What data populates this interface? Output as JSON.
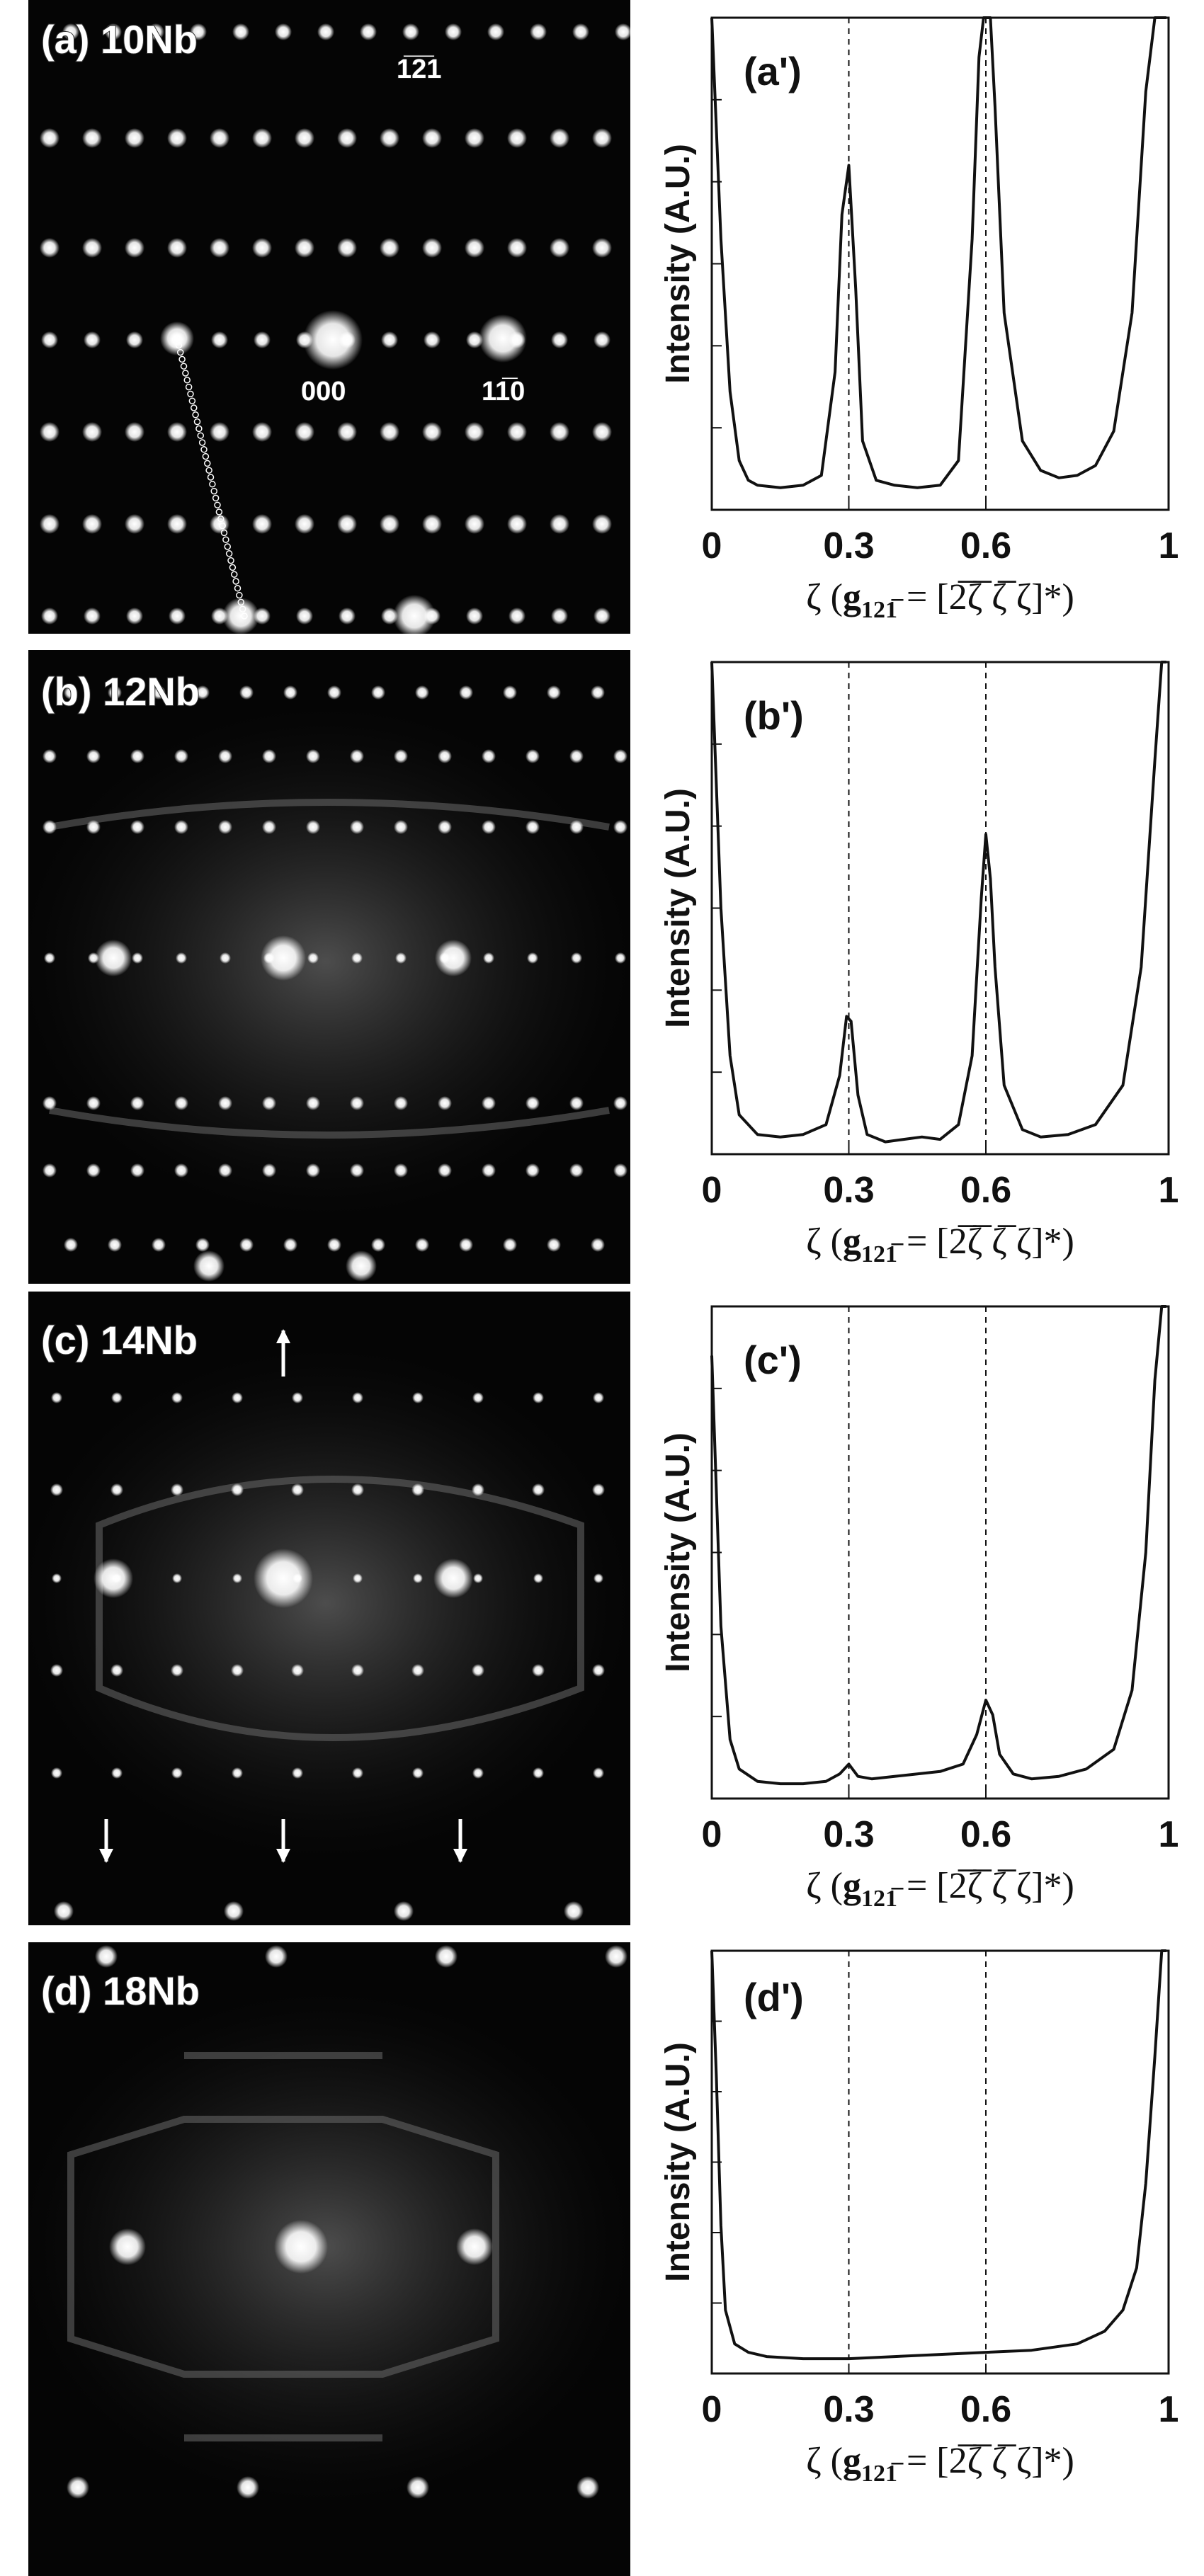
{
  "figure": {
    "panels": [
      {
        "sad_label": "(a) 10Nb",
        "spot_labels": [
          {
            "text": "1̅2̅1",
            "role": "upper"
          },
          {
            "text": "000",
            "role": "center"
          },
          {
            "text": "11̅0",
            "role": "right"
          }
        ],
        "plot_label": "(a')"
      },
      {
        "sad_label": "(b) 12Nb",
        "plot_label": "(b')"
      },
      {
        "sad_label": "(c) 14Nb",
        "plot_label": "(c')"
      },
      {
        "sad_label": "(d) 18Nb",
        "plot_label": "(d')"
      }
    ],
    "shared_axes": {
      "ylabel": "Intensity (A.U.)",
      "x_ticks": [
        "0",
        "0.3",
        "0.6",
        "1"
      ],
      "xlabel_prefix": "ζ (",
      "xlabel_g": "g",
      "xlabel_g_sub": "121̅",
      "xlabel_suffix": " = [2̅ζ̅ ζ̅ ζ]*)"
    }
  },
  "chart_data": [
    {
      "type": "line",
      "title": "(a')",
      "xlabel": "ζ (g121̅ = [2̅ζ̅ ζ̅ ζ]*)",
      "ylabel": "Intensity (A.U.)",
      "xlim": [
        0,
        1
      ],
      "ylim": [
        0,
        1
      ],
      "x_ticks": [
        0,
        0.3,
        0.6,
        1
      ],
      "vlines": [
        0.3,
        0.6
      ],
      "grid": false,
      "series": [
        {
          "x": [
            0.0,
            0.02,
            0.04,
            0.06,
            0.08,
            0.1,
            0.15,
            0.2,
            0.24,
            0.27,
            0.285,
            0.3,
            0.315,
            0.33,
            0.36,
            0.4,
            0.45,
            0.5,
            0.54,
            0.57,
            0.585,
            0.595,
            0.6,
            0.61,
            0.62,
            0.64,
            0.68,
            0.72,
            0.76,
            0.8,
            0.84,
            0.88,
            0.92,
            0.95,
            0.97,
            0.985,
            0.995
          ],
          "y": [
            1.0,
            0.55,
            0.24,
            0.1,
            0.06,
            0.05,
            0.045,
            0.05,
            0.07,
            0.28,
            0.6,
            0.7,
            0.45,
            0.14,
            0.06,
            0.05,
            0.045,
            0.05,
            0.1,
            0.55,
            0.92,
            1.0,
            1.0,
            1.0,
            0.82,
            0.4,
            0.14,
            0.08,
            0.065,
            0.07,
            0.09,
            0.16,
            0.4,
            0.85,
            1.0,
            1.0,
            1.0
          ]
        }
      ]
    },
    {
      "type": "line",
      "title": "(b')",
      "xlabel": "ζ (g121̅ = [2̅ζ̅ ζ̅ ζ]*)",
      "ylabel": "Intensity (A.U.)",
      "xlim": [
        0,
        1
      ],
      "ylim": [
        0,
        1
      ],
      "x_ticks": [
        0,
        0.3,
        0.6,
        1
      ],
      "vlines": [
        0.3,
        0.6
      ],
      "grid": false,
      "series": [
        {
          "x": [
            0.0,
            0.02,
            0.04,
            0.06,
            0.1,
            0.15,
            0.2,
            0.25,
            0.28,
            0.295,
            0.305,
            0.32,
            0.34,
            0.38,
            0.42,
            0.46,
            0.5,
            0.54,
            0.57,
            0.59,
            0.6,
            0.61,
            0.62,
            0.64,
            0.68,
            0.72,
            0.78,
            0.84,
            0.9,
            0.94,
            0.97,
            0.985,
            0.995
          ],
          "y": [
            1.0,
            0.5,
            0.2,
            0.08,
            0.04,
            0.035,
            0.04,
            0.06,
            0.16,
            0.28,
            0.27,
            0.12,
            0.04,
            0.025,
            0.03,
            0.035,
            0.03,
            0.06,
            0.2,
            0.52,
            0.65,
            0.56,
            0.38,
            0.14,
            0.05,
            0.035,
            0.04,
            0.06,
            0.14,
            0.38,
            0.8,
            1.0,
            1.0
          ]
        }
      ]
    },
    {
      "type": "line",
      "title": "(c')",
      "xlabel": "ζ (g121̅ = [2̅ζ̅ ζ̅ ζ]*)",
      "ylabel": "Intensity (A.U.)",
      "xlim": [
        0,
        1
      ],
      "ylim": [
        0,
        1
      ],
      "x_ticks": [
        0,
        0.3,
        0.6,
        1
      ],
      "vlines": [
        0.3,
        0.6
      ],
      "grid": false,
      "series": [
        {
          "x": [
            0.0,
            0.02,
            0.04,
            0.06,
            0.1,
            0.15,
            0.2,
            0.25,
            0.28,
            0.3,
            0.32,
            0.35,
            0.4,
            0.45,
            0.5,
            0.55,
            0.58,
            0.6,
            0.615,
            0.63,
            0.66,
            0.7,
            0.76,
            0.82,
            0.88,
            0.92,
            0.95,
            0.97,
            0.985,
            0.995
          ],
          "y": [
            0.9,
            0.35,
            0.12,
            0.06,
            0.035,
            0.03,
            0.03,
            0.035,
            0.05,
            0.07,
            0.045,
            0.04,
            0.045,
            0.05,
            0.055,
            0.07,
            0.13,
            0.2,
            0.17,
            0.09,
            0.05,
            0.04,
            0.045,
            0.06,
            0.1,
            0.22,
            0.5,
            0.85,
            1.0,
            1.0
          ]
        }
      ]
    },
    {
      "type": "line",
      "title": "(d')",
      "xlabel": "ζ (g121̅ = [2̅ζ̅ ζ̅ ζ]*)",
      "ylabel": "Intensity (A.U.)",
      "xlim": [
        0,
        1
      ],
      "ylim": [
        0,
        1
      ],
      "x_ticks": [
        0,
        0.3,
        0.6,
        1
      ],
      "vlines": [
        0.3,
        0.6
      ],
      "grid": false,
      "series": [
        {
          "x": [
            0.0,
            0.01,
            0.02,
            0.03,
            0.05,
            0.08,
            0.12,
            0.2,
            0.3,
            0.4,
            0.5,
            0.6,
            0.7,
            0.8,
            0.86,
            0.9,
            0.93,
            0.95,
            0.97,
            0.985,
            0.995
          ],
          "y": [
            1.0,
            0.7,
            0.35,
            0.15,
            0.07,
            0.05,
            0.04,
            0.035,
            0.035,
            0.04,
            0.045,
            0.05,
            0.055,
            0.07,
            0.1,
            0.15,
            0.25,
            0.45,
            0.75,
            1.0,
            1.0
          ]
        }
      ]
    }
  ]
}
